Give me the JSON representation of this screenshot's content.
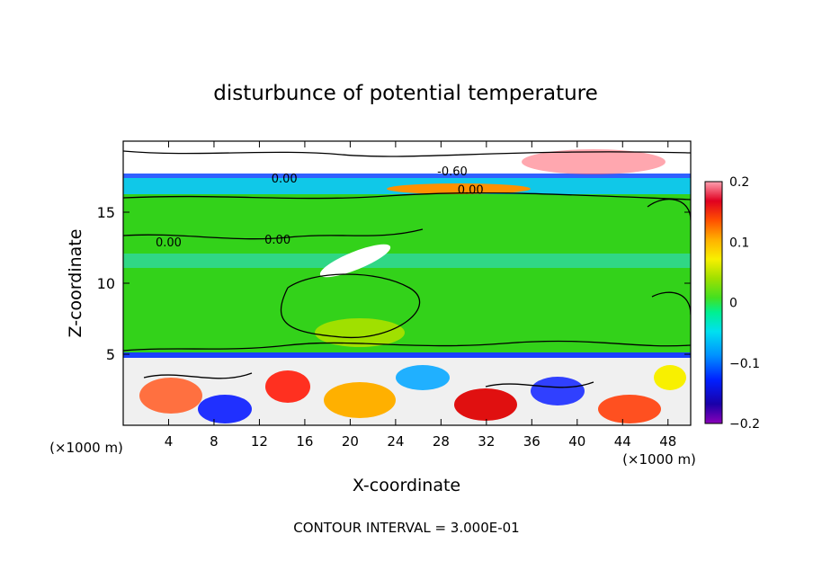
{
  "chart_data": {
    "type": "heatmap",
    "title": "disturbunce of potential temperature",
    "xlabel": "X-coordinate",
    "ylabel": "Z-coordinate",
    "x_unit_left": "(×1000 m)",
    "x_unit_right": "(×1000 m)",
    "xlim": [
      0,
      50
    ],
    "ylim": [
      0,
      20
    ],
    "xticks": [
      4,
      8,
      12,
      16,
      20,
      24,
      28,
      32,
      36,
      40,
      44,
      48
    ],
    "yticks": [
      5,
      10,
      15
    ],
    "footer": "CONTOUR INTERVAL = 3.000E-01",
    "colorbar": {
      "min": -0.2,
      "max": 0.2,
      "tick_values": [
        0.2,
        0.1,
        0,
        -0.1,
        -0.2
      ],
      "tick_labels": [
        "0.2",
        "0.1",
        "0",
        "−0.1",
        "−0.2"
      ]
    },
    "contour_labels": [
      {
        "text": "0.00",
        "x": 14.2,
        "y": 17.4
      },
      {
        "text": "-0.60",
        "x": 29.0,
        "y": 17.9
      },
      {
        "text": "0.00",
        "x": 30.6,
        "y": 16.6
      },
      {
        "text": "0.00",
        "x": 4.0,
        "y": 12.9
      },
      {
        "text": "0.00",
        "x": 13.6,
        "y": 13.1
      }
    ]
  }
}
